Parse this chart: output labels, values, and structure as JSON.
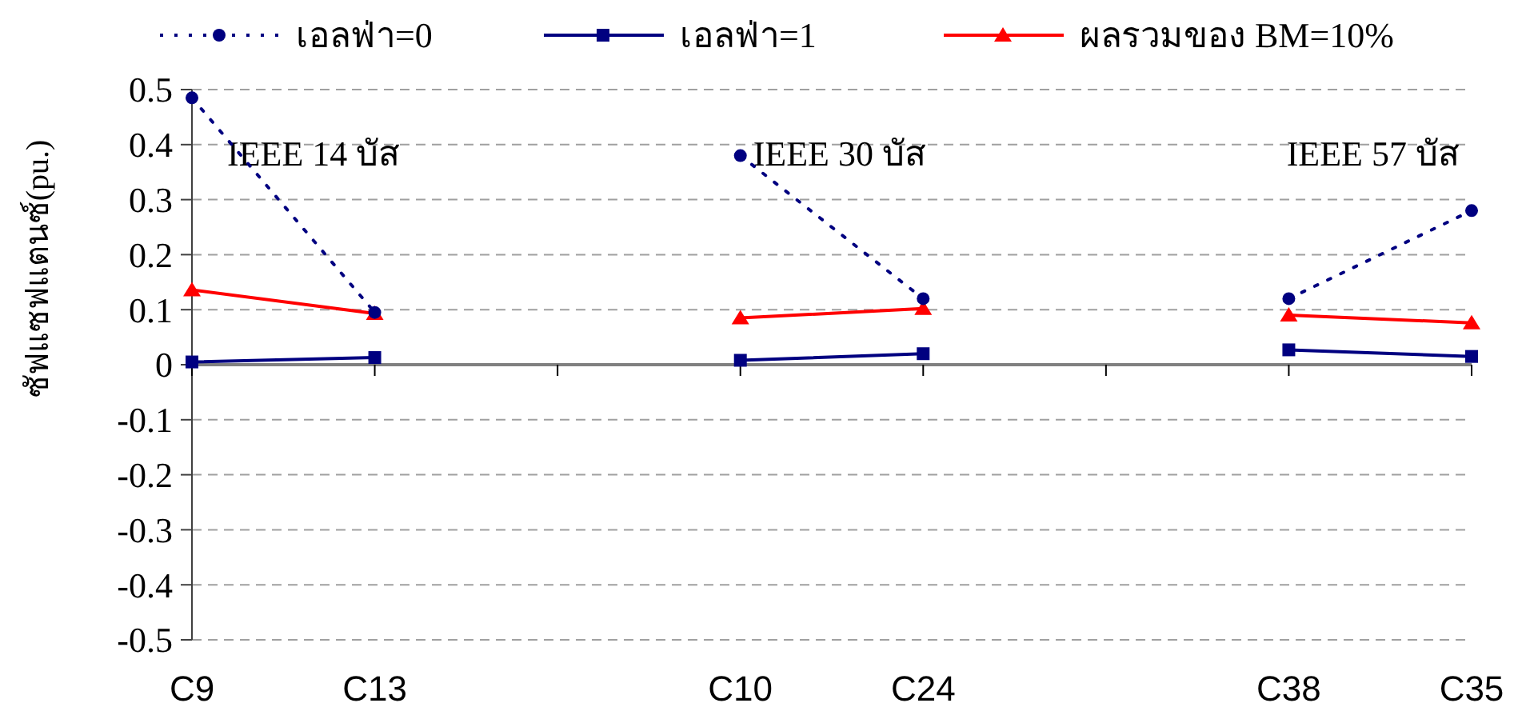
{
  "chart_data": {
    "type": "line",
    "ylabel": "ซัฟแซฟแตนซ์(pu.)",
    "categories": [
      "C9",
      "C13",
      null,
      "C10",
      "C24",
      null,
      "C38",
      "C35"
    ],
    "ylim": [
      -0.5,
      0.5
    ],
    "yticks": [
      -0.5,
      -0.4,
      -0.3,
      -0.2,
      -0.1,
      0,
      0.1,
      0.2,
      0.3,
      0.4,
      0.5
    ],
    "grid": "y",
    "legend": "top",
    "annotations": [
      "IEEE 14 บัส",
      "IEEE 30 บัส",
      "IEEE 57 บัส"
    ],
    "series": [
      {
        "name": "เอลฟ่า=0",
        "color": "#000080",
        "marker": "circle",
        "line_style": "dotted",
        "values": [
          0.485,
          0.095,
          null,
          0.38,
          0.12,
          null,
          0.12,
          0.28
        ]
      },
      {
        "name": "เอลฟ่า=1",
        "color": "#000080",
        "marker": "square",
        "line_style": "solid",
        "values": [
          0.005,
          0.013,
          null,
          0.008,
          0.02,
          null,
          0.027,
          0.015
        ]
      },
      {
        "name": "ผลรวมของ BM=10%",
        "color": "#ff0000",
        "marker": "triangle",
        "line_style": "solid",
        "values": [
          0.136,
          0.093,
          null,
          0.085,
          0.102,
          null,
          0.09,
          0.076
        ]
      }
    ]
  }
}
